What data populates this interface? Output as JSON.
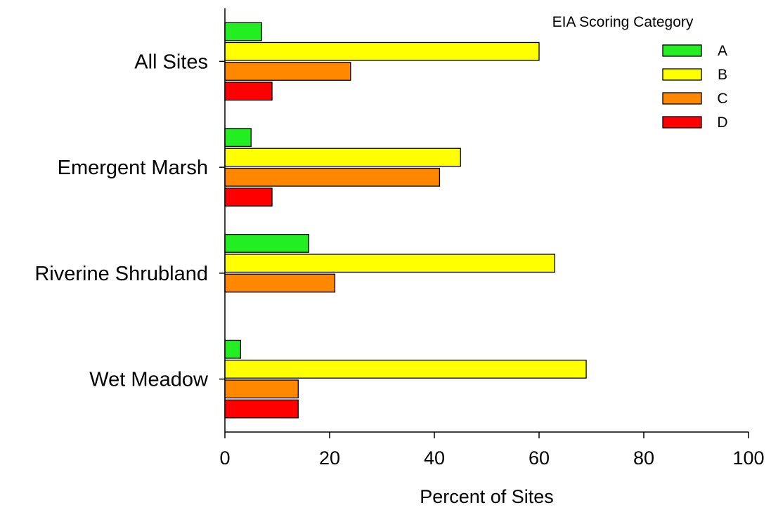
{
  "chart_data": {
    "type": "bar",
    "orientation": "horizontal",
    "categories": [
      "All Sites",
      "Emergent Marsh",
      "Riverine Shrubland",
      "Wet Meadow"
    ],
    "series": [
      {
        "name": "A",
        "color": "#22ee22",
        "values": [
          7,
          5,
          16,
          3
        ]
      },
      {
        "name": "B",
        "color": "#ffff00",
        "values": [
          60,
          45,
          63,
          69
        ]
      },
      {
        "name": "C",
        "color": "#ff8800",
        "values": [
          24,
          41,
          21,
          14
        ]
      },
      {
        "name": "D",
        "color": "#ff0000",
        "values": [
          9,
          9,
          0,
          14
        ]
      }
    ],
    "title": "",
    "xlabel": "Percent of Sites",
    "ylabel": "",
    "xlim": [
      0,
      100
    ],
    "xticks": [
      0,
      20,
      40,
      60,
      80,
      100
    ],
    "legend": {
      "title": "EIA Scoring Category",
      "position": "top-right"
    },
    "grid": false
  }
}
